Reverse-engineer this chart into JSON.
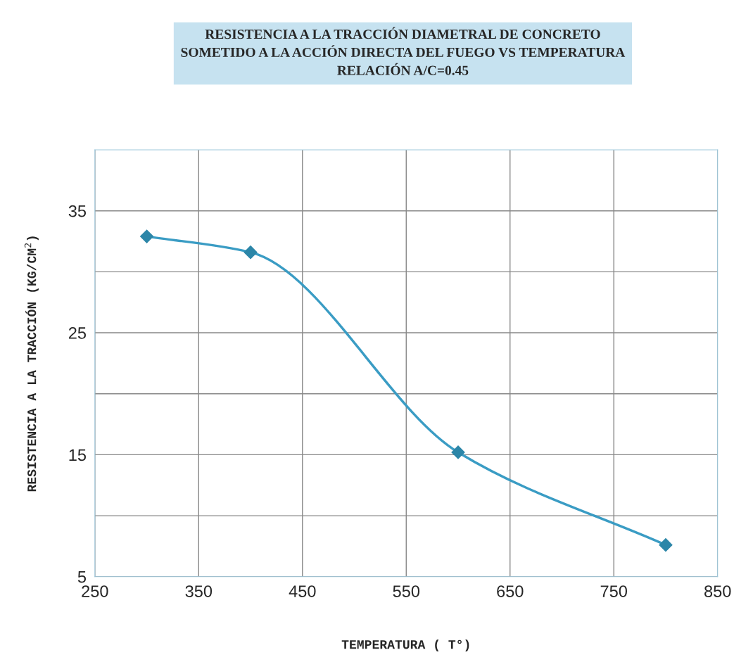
{
  "chart_data": {
    "type": "line",
    "title": "RESISTENCIA A LA TRACCIÓN DIAMETRAL DE CONCRETO\nSOMETIDO A LA ACCIÓN DIRECTA DEL FUEGO VS TEMPERATURA\nRELACIÓN A/C=0.45",
    "xlabel": "TEMPERATURA ( T°)",
    "ylabel": "RESISTENCIA A LA TRACCIÓN (KG/CM$^{2}$)",
    "x": [
      300,
      400,
      600,
      800
    ],
    "series": [
      {
        "color": "#3a9cc4",
        "values": [
          32.9,
          31.6,
          15.2,
          7.6
        ]
      }
    ],
    "xlim": [
      250,
      850
    ],
    "xticks": [
      250,
      350,
      450,
      550,
      650,
      750,
      850
    ],
    "ylim": [
      5,
      40
    ],
    "yticks": [
      5,
      {
        "value": 10,
        "label": null
      },
      15,
      {
        "value": 20,
        "label": null
      },
      25,
      {
        "value": 30,
        "label": null
      },
      35
    ],
    "grid": true,
    "marker": "diamond",
    "line_style": "solid",
    "legend": false
  }
}
